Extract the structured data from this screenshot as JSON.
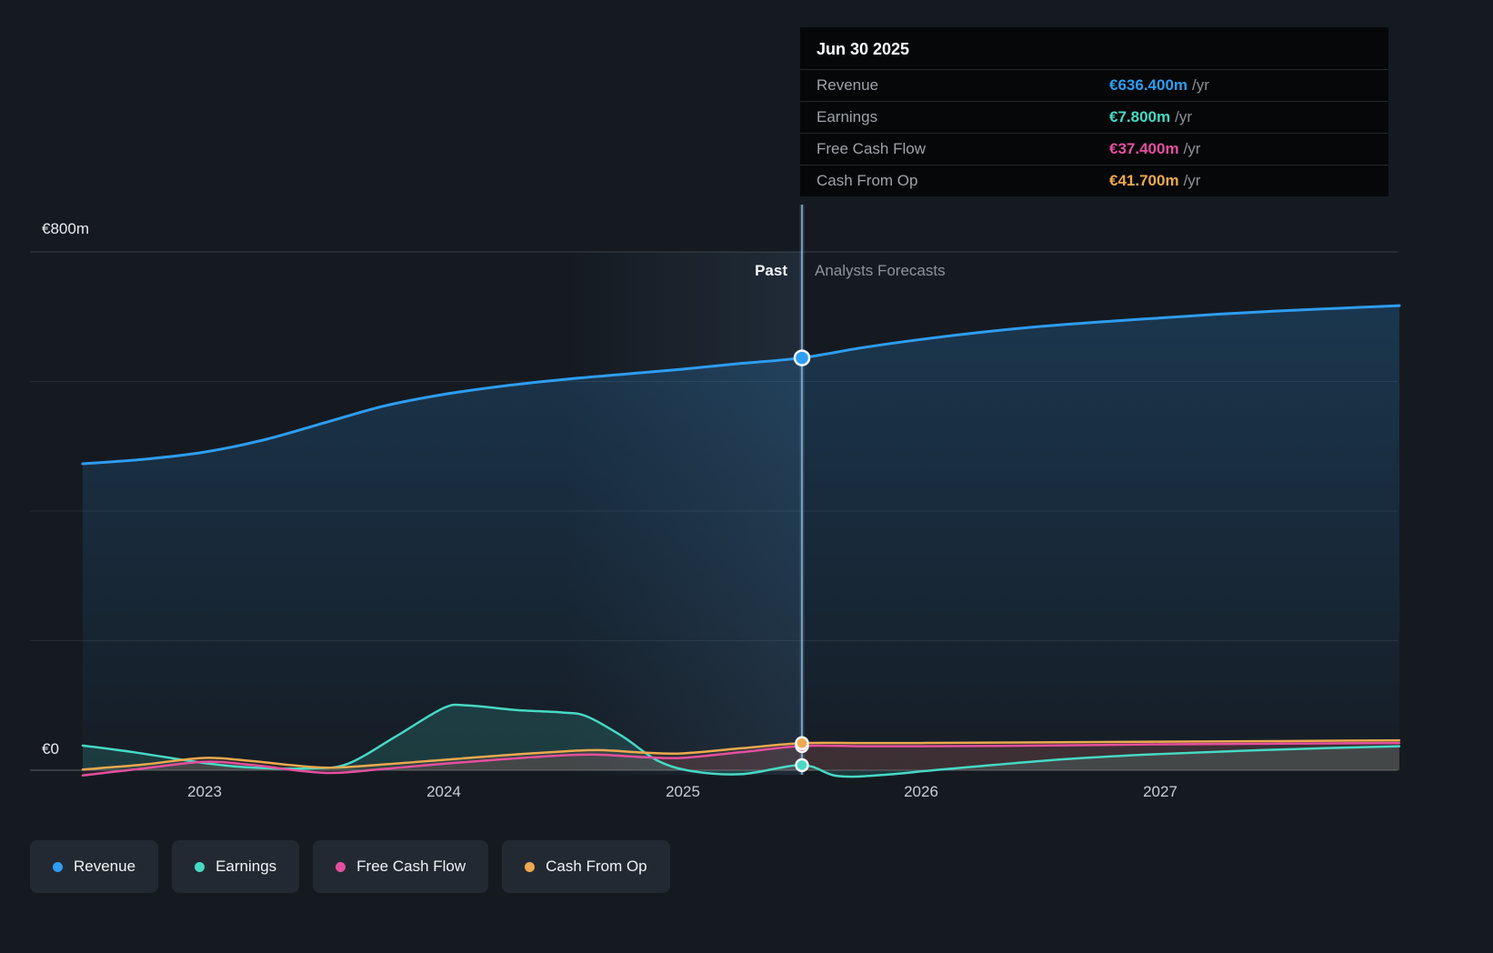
{
  "tooltip": {
    "date": "Jun 30 2025",
    "rows": [
      {
        "label": "Revenue",
        "value": "€636.400m",
        "suffix": "/yr",
        "color": "#2e9df2"
      },
      {
        "label": "Earnings",
        "value": "€7.800m",
        "suffix": "/yr",
        "color": "#47d9c5"
      },
      {
        "label": "Free Cash Flow",
        "value": "€37.400m",
        "suffix": "/yr",
        "color": "#e54f9e"
      },
      {
        "label": "Cash From Op",
        "value": "€41.700m",
        "suffix": "/yr",
        "color": "#eca94f"
      }
    ]
  },
  "axis": {
    "y_top_label": "€800m",
    "y_zero_label": "€0",
    "x_labels": [
      "2023",
      "2024",
      "2025",
      "2026",
      "2027"
    ]
  },
  "divider": {
    "past_label": "Past",
    "forecast_label": "Analysts Forecasts"
  },
  "legend": [
    {
      "label": "Revenue",
      "color": "#2e9df2"
    },
    {
      "label": "Earnings",
      "color": "#47d9c5"
    },
    {
      "label": "Free Cash Flow",
      "color": "#e54f9e"
    },
    {
      "label": "Cash From Op",
      "color": "#eca94f"
    }
  ],
  "chart_data": {
    "type": "line",
    "currency": "EUR",
    "unit": "millions",
    "x_unit": "calendar year",
    "x_range": [
      2022.49,
      2028.0
    ],
    "ylim": [
      -40,
      800
    ],
    "y_gridlines": [
      0,
      200,
      400,
      600,
      800
    ],
    "grid": true,
    "legend_position": "bottom-left",
    "past_until": 2025.5,
    "highlight_from": 2024.5,
    "marker_date": "Jun 30 2025",
    "series": [
      {
        "name": "Revenue",
        "color": "#2e9df2",
        "marker_value": 636.4,
        "points": [
          [
            2022.49,
            473
          ],
          [
            2022.75,
            480
          ],
          [
            2023.0,
            491
          ],
          [
            2023.25,
            510
          ],
          [
            2023.5,
            536
          ],
          [
            2023.75,
            562
          ],
          [
            2024.0,
            580
          ],
          [
            2024.25,
            593
          ],
          [
            2024.5,
            603
          ],
          [
            2024.75,
            611
          ],
          [
            2025.0,
            619
          ],
          [
            2025.25,
            628
          ],
          [
            2025.5,
            636.4
          ],
          [
            2025.75,
            652
          ],
          [
            2026.0,
            665
          ],
          [
            2026.25,
            676
          ],
          [
            2026.5,
            685
          ],
          [
            2026.75,
            692
          ],
          [
            2027.0,
            698
          ],
          [
            2027.25,
            704
          ],
          [
            2027.5,
            709
          ],
          [
            2027.75,
            713
          ],
          [
            2028.0,
            717
          ]
        ]
      },
      {
        "name": "Earnings",
        "color": "#47d9c5",
        "marker_value": 7.8,
        "points": [
          [
            2022.49,
            38
          ],
          [
            2022.7,
            28
          ],
          [
            2023.0,
            11
          ],
          [
            2023.2,
            4
          ],
          [
            2023.45,
            3
          ],
          [
            2023.6,
            10
          ],
          [
            2023.8,
            52
          ],
          [
            2024.0,
            96
          ],
          [
            2024.1,
            100
          ],
          [
            2024.3,
            93
          ],
          [
            2024.5,
            89
          ],
          [
            2024.6,
            83
          ],
          [
            2024.75,
            52
          ],
          [
            2024.9,
            14
          ],
          [
            2025.05,
            -2
          ],
          [
            2025.25,
            -6
          ],
          [
            2025.5,
            7.8
          ],
          [
            2025.65,
            -9
          ],
          [
            2025.85,
            -7
          ],
          [
            2026.05,
            0
          ],
          [
            2026.3,
            8
          ],
          [
            2026.6,
            17
          ],
          [
            2027.0,
            25
          ],
          [
            2027.5,
            32
          ],
          [
            2028.0,
            37
          ]
        ]
      },
      {
        "name": "Free Cash Flow",
        "color": "#e54f9e",
        "marker_value": 37.4,
        "points": [
          [
            2022.49,
            -8
          ],
          [
            2022.75,
            3
          ],
          [
            2023.0,
            13
          ],
          [
            2023.2,
            8
          ],
          [
            2023.5,
            -4
          ],
          [
            2023.75,
            2
          ],
          [
            2024.0,
            10
          ],
          [
            2024.25,
            17
          ],
          [
            2024.5,
            23
          ],
          [
            2024.65,
            24
          ],
          [
            2024.85,
            20
          ],
          [
            2025.0,
            19
          ],
          [
            2025.25,
            28
          ],
          [
            2025.5,
            37.4
          ],
          [
            2025.75,
            37
          ],
          [
            2026.0,
            37
          ],
          [
            2026.5,
            38
          ],
          [
            2027.0,
            40
          ],
          [
            2027.5,
            41
          ],
          [
            2028.0,
            42
          ]
        ]
      },
      {
        "name": "Cash From Op",
        "color": "#eca94f",
        "marker_value": 41.7,
        "points": [
          [
            2022.49,
            1
          ],
          [
            2022.75,
            9
          ],
          [
            2023.0,
            19
          ],
          [
            2023.2,
            14
          ],
          [
            2023.5,
            4
          ],
          [
            2023.75,
            9
          ],
          [
            2024.0,
            16
          ],
          [
            2024.25,
            23
          ],
          [
            2024.5,
            29
          ],
          [
            2024.65,
            31
          ],
          [
            2024.85,
            27
          ],
          [
            2025.0,
            26
          ],
          [
            2025.25,
            34
          ],
          [
            2025.5,
            41.7
          ],
          [
            2025.75,
            42
          ],
          [
            2026.0,
            42
          ],
          [
            2026.5,
            43
          ],
          [
            2027.0,
            44
          ],
          [
            2027.5,
            45
          ],
          [
            2028.0,
            46
          ]
        ]
      }
    ]
  }
}
